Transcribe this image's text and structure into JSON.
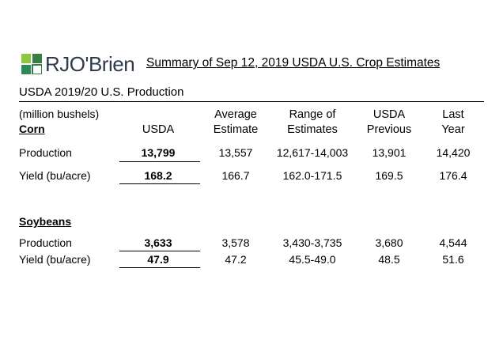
{
  "brand": {
    "name": "RJO'Brien",
    "mark_colors": [
      "#8dc63f",
      "#3a7d44",
      "#2e8b57"
    ]
  },
  "report_title": "Summary of Sep 12, 2019 USDA U.S. Crop Estimates",
  "section_title": "USDA 2019/20 U.S. Production",
  "units_note": "(million bushels)",
  "columns": {
    "usda": "USDA",
    "avg_line1": "Average",
    "avg_line2": "Estimate",
    "range_line1": "Range of",
    "range_line2": "Estimates",
    "prev_line1": "USDA",
    "prev_line2": "Previous",
    "last_line1": "Last",
    "last_line2": "Year"
  },
  "corn": {
    "label": "Corn",
    "rows": [
      {
        "label": "Production",
        "usda": "13,799",
        "avg": "13,557",
        "range": "12,617-14,003",
        "prev": "13,901",
        "last": "14,420"
      },
      {
        "label": "Yield (bu/acre)",
        "usda": "168.2",
        "avg": "166.7",
        "range": "162.0-171.5",
        "prev": "169.5",
        "last": "176.4"
      }
    ]
  },
  "soybeans": {
    "label": "Soybeans",
    "rows": [
      {
        "label": "Production",
        "usda": "3,633",
        "avg": "3,578",
        "range": "3,430-3,735",
        "prev": "3,680",
        "last": "4,544"
      },
      {
        "label": "Yield (bu/acre)",
        "usda": "47.9",
        "avg": "47.2",
        "range": "45.5-49.0",
        "prev": "48.5",
        "last": "51.6"
      }
    ]
  }
}
